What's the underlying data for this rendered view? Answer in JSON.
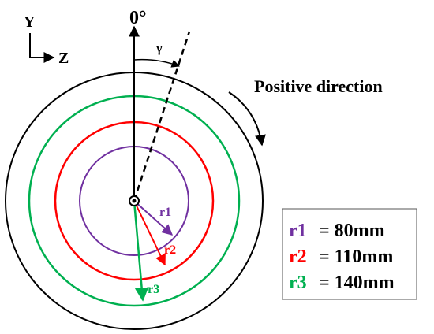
{
  "axes": {
    "y": "Y",
    "z": "Z"
  },
  "zero_angle": "0°",
  "angle": "γ",
  "direction": "Positive direction",
  "radii": [
    {
      "name": "r1",
      "text": "= 80mm",
      "color": "#7030a0"
    },
    {
      "name": "r2",
      "text": "= 110mm",
      "color": "#ff0000"
    },
    {
      "name": "r3",
      "text": "= 140mm",
      "color": "#00b050"
    }
  ]
}
